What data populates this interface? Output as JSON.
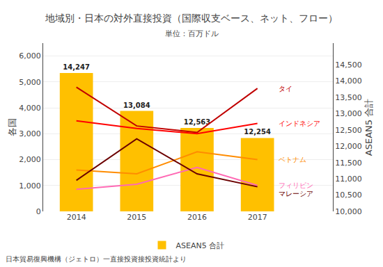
{
  "chart_data": {
    "type": "bar",
    "title": "地域別・日本の対外直接投資（国際収支ベース、ネット、フロー）",
    "subtitle": "単位：百万ドル",
    "footnote": "日本貿易復興機構（ジェトロ）一直接投資接投資統計より",
    "ylabel": "各国",
    "y2label": "ASEAN5 合計",
    "categories": [
      "2014",
      "2015",
      "2016",
      "2017"
    ],
    "series": [
      {
        "name": "ASEAN5 合計",
        "type": "bar",
        "axis": "y2",
        "color": "#FFC000",
        "values": [
          14247,
          13084,
          12563,
          12254
        ],
        "data_labels": true,
        "value_labels": [
          "14,247",
          "13,084",
          "12,563",
          "12,254"
        ]
      },
      {
        "name": "タイ",
        "type": "line",
        "color": "#C00000",
        "values": [
          4800,
          3300,
          3050,
          4750
        ]
      },
      {
        "name": "インドネシア",
        "type": "line",
        "color": "#FF0000",
        "values": [
          3500,
          3200,
          3000,
          3400
        ]
      },
      {
        "name": "ベトナム",
        "type": "line",
        "color": "#FF8C00",
        "values": [
          1600,
          1450,
          2300,
          2000
        ]
      },
      {
        "name": "フィリピン",
        "type": "line",
        "color": "#FF69B4",
        "values": [
          850,
          1050,
          1700,
          1000
        ]
      },
      {
        "name": "マレーシア",
        "type": "line",
        "color": "#6B0000",
        "values": [
          1200,
          2800,
          1450,
          950
        ]
      }
    ],
    "ylim": [
      0,
      6500
    ],
    "yticks": [
      0,
      {
        "value": 1000,
        "label": "1,000"
      },
      {
        "value": 2000,
        "label": "2,000"
      },
      {
        "value": 3000,
        "label": "3,000"
      },
      {
        "value": 4000,
        "label": "4,000"
      },
      {
        "value": 5000,
        "label": "5,000"
      },
      {
        "value": 6000,
        "label": "6,000"
      }
    ],
    "y2lim": [
      10000,
      15166
    ],
    "y2ticks": [
      {
        "value": 10000,
        "label": "10,000"
      },
      {
        "value": 10500,
        "label": "10,500"
      },
      {
        "value": 11000,
        "label": "11,000"
      },
      {
        "value": 11500,
        "label": "11,500"
      },
      {
        "value": 12000,
        "label": "12,000"
      },
      {
        "value": 12500,
        "label": "12,500"
      },
      {
        "value": 13000,
        "label": "13,000"
      },
      {
        "value": 13500,
        "label": "13,500"
      },
      {
        "value": 14000,
        "label": "14,000"
      },
      {
        "value": 14500,
        "label": "14,500"
      }
    ],
    "grid": true,
    "legend": "bottom"
  }
}
